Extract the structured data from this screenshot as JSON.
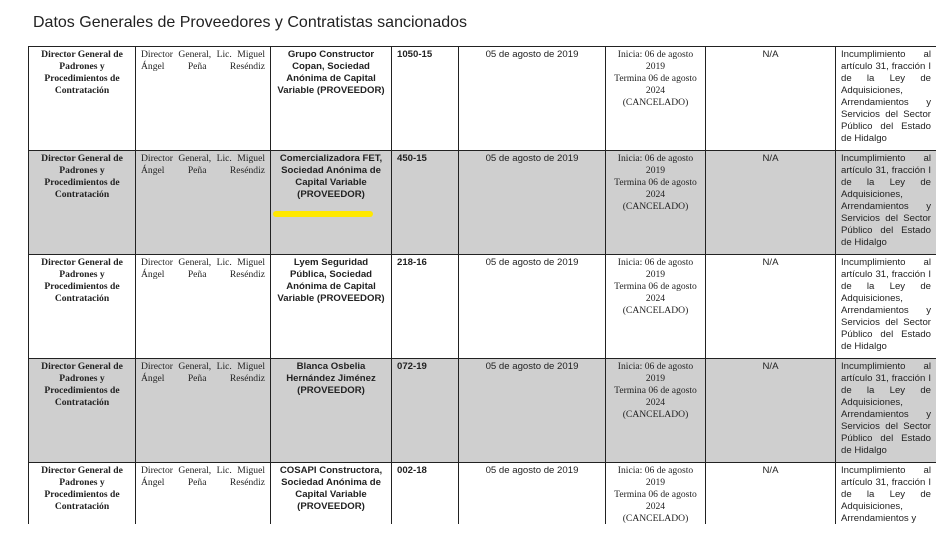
{
  "title": "Datos Generales de Proveedores y Contratistas sancionados",
  "highlight_color": "#ffe800",
  "rows": [
    {
      "authority": "Director General de Padrones y Procedimientos de Contratación",
      "official": "Director General, Lic. Miguel Ángel Peña Reséndiz",
      "company": "Grupo Constructor Copan, Sociedad Anónima de Capital Variable (PROVEEDOR)",
      "file": "1050-15",
      "date": "05 de agosto de 2019",
      "period_start": "Inicia: 06 de agosto 2019",
      "period_end": "Termina 06 de agosto 2024",
      "period_status": "(CANCELADO)",
      "amount": "N/A",
      "reason": "Incumplimiento al artículo 31, fracción I de la Ley de Adquisiciones, Arrendamientos y Servicios del Sector Público del Estado de Hidalgo",
      "shaded": false,
      "highlighted": false
    },
    {
      "authority": "Director General de Padrones y Procedimientos de Contratación",
      "official": "Director General, Lic. Miguel Ángel Peña Reséndiz",
      "company": "Comercializadora FET, Sociedad Anónima de Capital Variable (PROVEEDOR)",
      "file": "450-15",
      "date": "05 de agosto de 2019",
      "period_start": "Inicia: 06 de agosto 2019",
      "period_end": "Termina 06 de agosto 2024",
      "period_status": "(CANCELADO)",
      "amount": "N/A",
      "reason": "Incumplimiento al artículo 31, fracción I de la Ley de Adquisiciones, Arrendamientos y Servicios del Sector Público del Estado de Hidalgo",
      "shaded": true,
      "highlighted": true
    },
    {
      "authority": "Director General de Padrones y Procedimientos de Contratación",
      "official": "Director General, Lic. Miguel Ángel Peña Reséndiz",
      "company": "Lyem Seguridad Pública, Sociedad Anónima de Capital Variable (PROVEEDOR)",
      "file": "218-16",
      "date": "05 de agosto de 2019",
      "period_start": "Inicia: 06 de agosto 2019",
      "period_end": "Termina 06 de agosto 2024",
      "period_status": "(CANCELADO)",
      "amount": "N/A",
      "reason": "Incumplimiento al artículo 31, fracción I de la Ley de Adquisiciones, Arrendamientos y Servicios del Sector Público del Estado de Hidalgo",
      "shaded": false,
      "highlighted": false
    },
    {
      "authority": "Director General de Padrones y Procedimientos de Contratación",
      "official": "Director General, Lic. Miguel Ángel Peña Reséndiz",
      "company": "Blanca Osbelia Hernández Jiménez (PROVEEDOR)",
      "file": "072-19",
      "date": "05 de agosto de 2019",
      "period_start": "Inicia: 06 de agosto 2019",
      "period_end": "Termina 06 de agosto 2024",
      "period_status": "(CANCELADO)",
      "amount": "N/A",
      "reason": "Incumplimiento al artículo 31, fracción I de la Ley de Adquisiciones, Arrendamientos y Servicios del Sector Público del Estado de Hidalgo",
      "shaded": true,
      "highlighted": false
    },
    {
      "authority": "Director General de Padrones y Procedimientos de Contratación",
      "official": "Director General, Lic. Miguel Ángel Peña Reséndiz",
      "company": "COSAPI Constructora, Sociedad Anónima de Capital Variable (PROVEEDOR)",
      "file": "002-18",
      "date": "05 de agosto de 2019",
      "period_start": "Inicia: 06 de agosto 2019",
      "period_end": "Termina 06 de agosto 2024",
      "period_status": "(CANCELADO)",
      "amount": "N/A",
      "reason": "Incumplimiento al artículo 31, fracción I de la Ley de Adquisiciones, Arrendamientos y",
      "shaded": false,
      "highlighted": false
    }
  ]
}
